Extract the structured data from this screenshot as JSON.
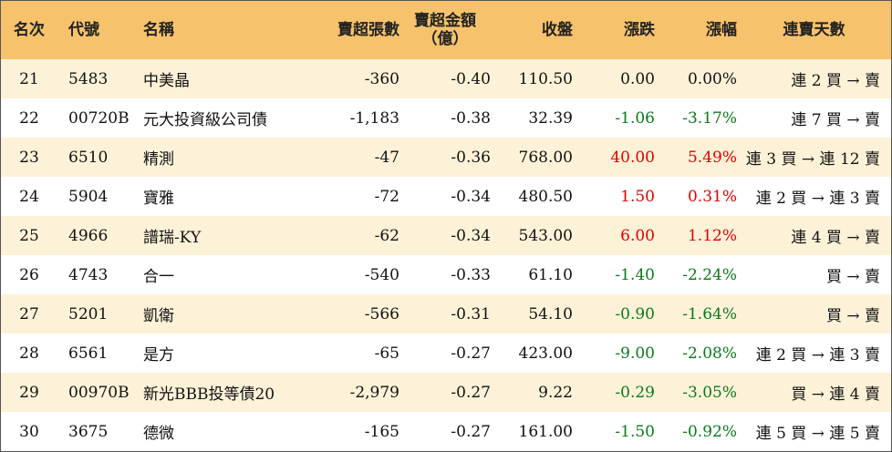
{
  "headers": {
    "rank": "名次",
    "code": "代號",
    "name": "名稱",
    "lots": "賣超張數",
    "amount_line1": "賣超金額",
    "amount_line2": "（億）",
    "close": "收盤",
    "change": "漲跌",
    "pct": "漲幅",
    "days": "連賣天數"
  },
  "colors": {
    "header_bg": "#f6c26b",
    "odd_row_bg": "#fdf2d8",
    "up": "#e00000",
    "down": "#0a7a1a"
  },
  "rows": [
    {
      "rank": "21",
      "code": "5483",
      "name": "中美晶",
      "lots": "-360",
      "amount": "-0.40",
      "close": "110.50",
      "change": "0.00",
      "pct": "0.00%",
      "days": "連 2 買 → 賣",
      "trend": "flat"
    },
    {
      "rank": "22",
      "code": "00720B",
      "name": "元大投資級公司債",
      "lots": "-1,183",
      "amount": "-0.38",
      "close": "32.39",
      "change": "-1.06",
      "pct": "-3.17%",
      "days": "連 7 買 → 賣",
      "trend": "down"
    },
    {
      "rank": "23",
      "code": "6510",
      "name": "精測",
      "lots": "-47",
      "amount": "-0.36",
      "close": "768.00",
      "change": "40.00",
      "pct": "5.49%",
      "days": "連 3 買 → 連 12 賣",
      "trend": "up"
    },
    {
      "rank": "24",
      "code": "5904",
      "name": "寶雅",
      "lots": "-72",
      "amount": "-0.34",
      "close": "480.50",
      "change": "1.50",
      "pct": "0.31%",
      "days": "連 2 買 → 連 3 賣",
      "trend": "up"
    },
    {
      "rank": "25",
      "code": "4966",
      "name": "譜瑞-KY",
      "lots": "-62",
      "amount": "-0.34",
      "close": "543.00",
      "change": "6.00",
      "pct": "1.12%",
      "days": "連 4 買 → 賣",
      "trend": "up"
    },
    {
      "rank": "26",
      "code": "4743",
      "name": "合一",
      "lots": "-540",
      "amount": "-0.33",
      "close": "61.10",
      "change": "-1.40",
      "pct": "-2.24%",
      "days": "買 → 賣",
      "trend": "down"
    },
    {
      "rank": "27",
      "code": "5201",
      "name": "凱衛",
      "lots": "-566",
      "amount": "-0.31",
      "close": "54.10",
      "change": "-0.90",
      "pct": "-1.64%",
      "days": "買 → 賣",
      "trend": "down"
    },
    {
      "rank": "28",
      "code": "6561",
      "name": "是方",
      "lots": "-65",
      "amount": "-0.27",
      "close": "423.00",
      "change": "-9.00",
      "pct": "-2.08%",
      "days": "連 2 買 → 連 3 賣",
      "trend": "down"
    },
    {
      "rank": "29",
      "code": "00970B",
      "name": "新光BBB投等債20",
      "lots": "-2,979",
      "amount": "-0.27",
      "close": "9.22",
      "change": "-0.29",
      "pct": "-3.05%",
      "days": "買 → 連 4 賣",
      "trend": "down"
    },
    {
      "rank": "30",
      "code": "3675",
      "name": "德微",
      "lots": "-165",
      "amount": "-0.27",
      "close": "161.00",
      "change": "-1.50",
      "pct": "-0.92%",
      "days": "連 5 買 → 連 5 賣",
      "trend": "down"
    }
  ]
}
